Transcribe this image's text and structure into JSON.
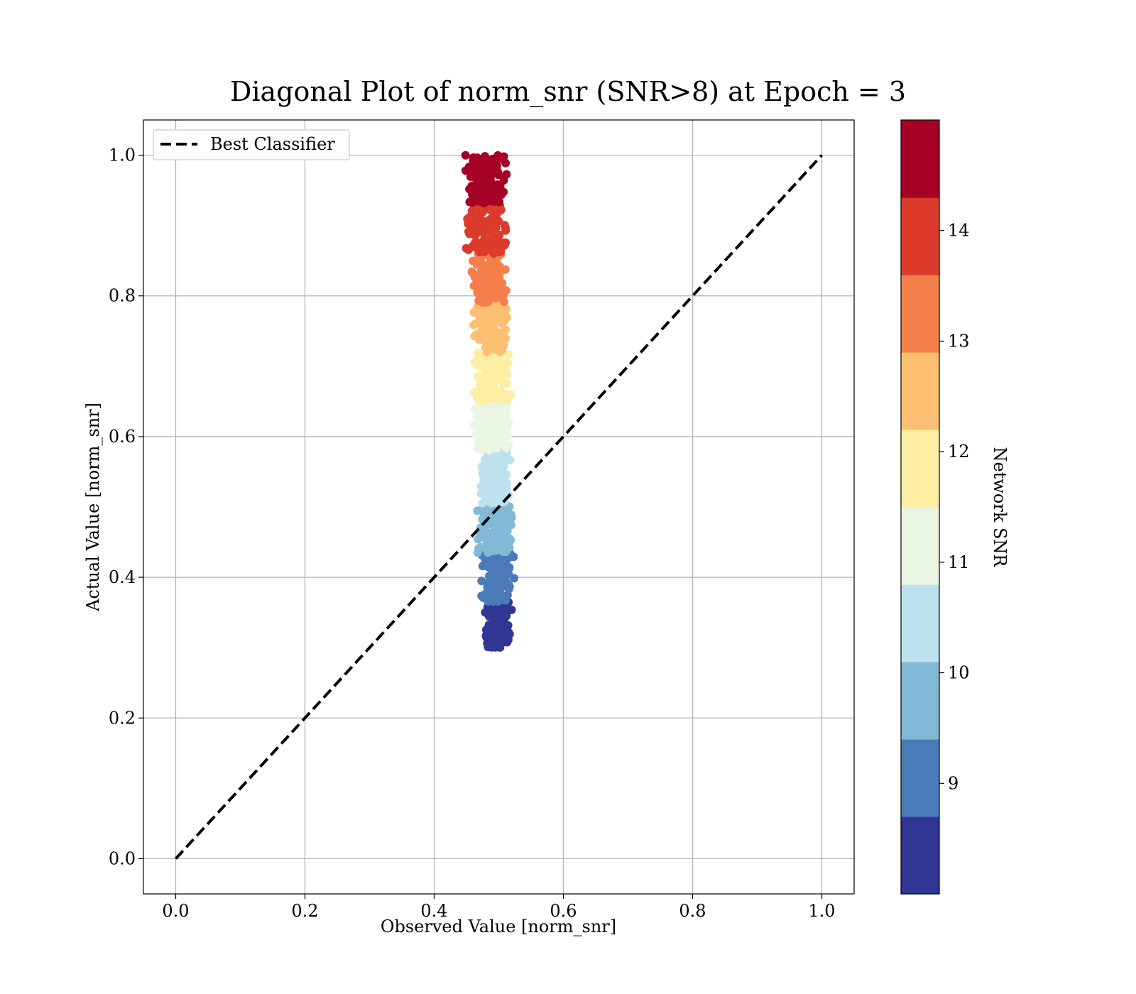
{
  "chart_data": {
    "type": "scatter",
    "title": "Diagonal Plot of norm_snr (SNR>8) at Epoch = 3",
    "xlabel": "Observed Value [norm_snr]",
    "ylabel": "Actual Value [norm_snr]",
    "xlim": [
      -0.05,
      1.05
    ],
    "ylim": [
      -0.05,
      1.05
    ],
    "xticks": [
      0.0,
      0.2,
      0.4,
      0.6,
      0.8,
      1.0
    ],
    "yticks": [
      0.0,
      0.2,
      0.4,
      0.6,
      0.8,
      1.0
    ],
    "xtick_labels": [
      "0.0",
      "0.2",
      "0.4",
      "0.6",
      "0.8",
      "1.0"
    ],
    "ytick_labels": [
      "0.0",
      "0.2",
      "0.4",
      "0.6",
      "0.8",
      "1.0"
    ],
    "grid": true,
    "legend": {
      "placement": "top-left",
      "entries": [
        "Best Classifier"
      ]
    },
    "reference_line": {
      "name": "Best Classifier",
      "style": "dashed",
      "color": "#000000",
      "x": [
        0.0,
        1.0
      ],
      "y": [
        0.0,
        1.0
      ]
    },
    "scatter_bands": [
      {
        "snr_range": [
          8,
          8.7
        ],
        "color": "#313695",
        "y_range": [
          0.3,
          0.365
        ],
        "x_range": [
          0.475,
          0.525
        ]
      },
      {
        "snr_range": [
          8.7,
          9.4
        ],
        "color": "#4a7ab7",
        "y_range": [
          0.365,
          0.435
        ],
        "x_range": [
          0.47,
          0.525
        ]
      },
      {
        "snr_range": [
          9.4,
          10.1
        ],
        "color": "#83b8d7",
        "y_range": [
          0.435,
          0.505
        ],
        "x_range": [
          0.465,
          0.525
        ]
      },
      {
        "snr_range": [
          10.1,
          10.8
        ],
        "color": "#bde2ed",
        "y_range": [
          0.505,
          0.58
        ],
        "x_range": [
          0.47,
          0.52
        ]
      },
      {
        "snr_range": [
          10.8,
          11.5
        ],
        "color": "#eaf6e2",
        "y_range": [
          0.58,
          0.65
        ],
        "x_range": [
          0.46,
          0.52
        ]
      },
      {
        "snr_range": [
          11.5,
          12.2
        ],
        "color": "#fdeea4",
        "y_range": [
          0.65,
          0.72
        ],
        "x_range": [
          0.46,
          0.52
        ]
      },
      {
        "snr_range": [
          12.2,
          12.9
        ],
        "color": "#fdbf71",
        "y_range": [
          0.72,
          0.79
        ],
        "x_range": [
          0.455,
          0.515
        ]
      },
      {
        "snr_range": [
          12.9,
          13.6
        ],
        "color": "#f57f4b",
        "y_range": [
          0.79,
          0.86
        ],
        "x_range": [
          0.455,
          0.515
        ]
      },
      {
        "snr_range": [
          13.6,
          14.3
        ],
        "color": "#dc3a2a",
        "y_range": [
          0.86,
          0.93
        ],
        "x_range": [
          0.445,
          0.515
        ]
      },
      {
        "snr_range": [
          14.3,
          15.0
        ],
        "color": "#a50026",
        "y_range": [
          0.93,
          1.0
        ],
        "x_range": [
          0.445,
          0.515
        ]
      }
    ],
    "colorbar": {
      "label": "Network SNR",
      "range": [
        8,
        15
      ],
      "ticks": [
        9,
        10,
        11,
        12,
        13,
        14
      ],
      "tick_labels": [
        "9",
        "10",
        "11",
        "12",
        "13",
        "14"
      ],
      "colors": [
        "#313695",
        "#4a7ab7",
        "#83b8d7",
        "#bde2ed",
        "#eaf6e2",
        "#fdeea4",
        "#fdbf71",
        "#f57f4b",
        "#dc3a2a",
        "#a50026"
      ]
    }
  }
}
